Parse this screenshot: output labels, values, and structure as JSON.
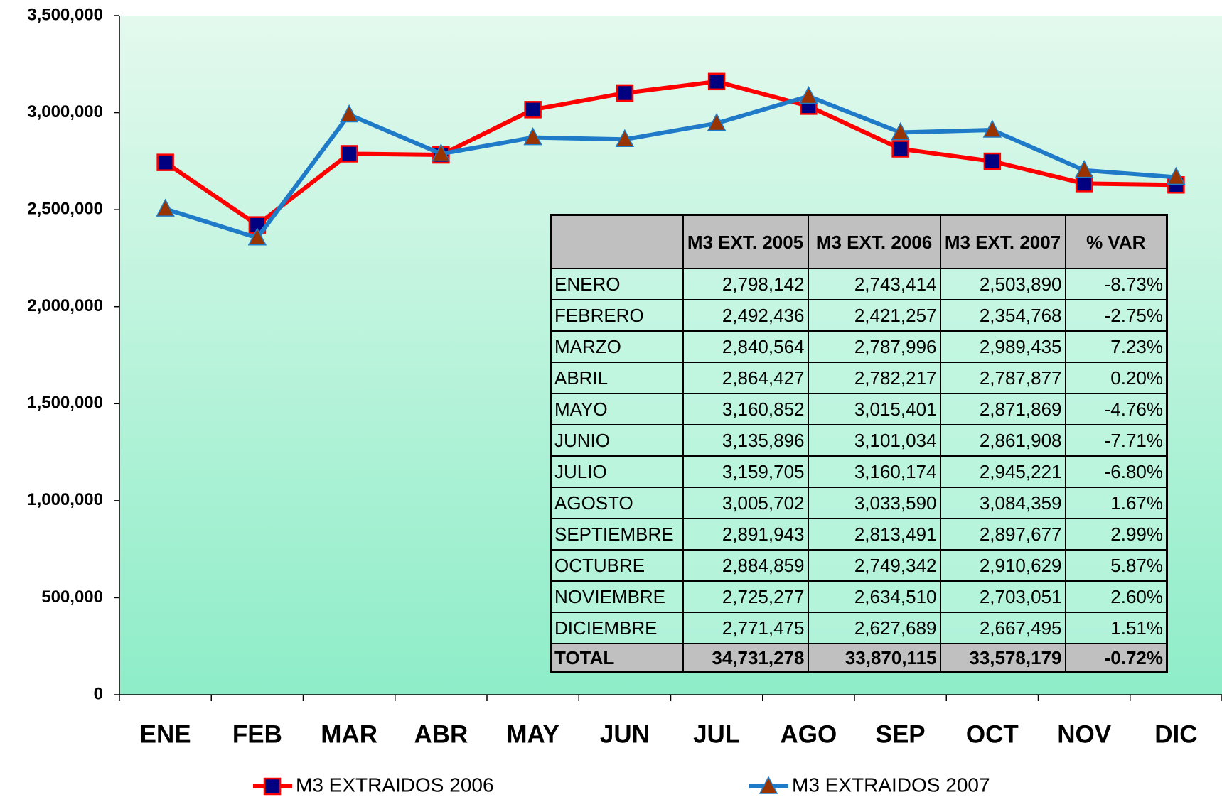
{
  "chart_data": {
    "type": "line",
    "categories": [
      "ENE",
      "FEB",
      "MAR",
      "ABR",
      "MAY",
      "JUN",
      "JUL",
      "AGO",
      "SEP",
      "OCT",
      "NOV",
      "DIC"
    ],
    "series": [
      {
        "name": "M3 EXTRAIDOS 2006",
        "color": "#ff0000",
        "marker_color": "#000080",
        "marker": "square",
        "values": [
          2743414,
          2421257,
          2787996,
          2782217,
          3015401,
          3101034,
          3160174,
          3033590,
          2813491,
          2749342,
          2634510,
          2627689
        ]
      },
      {
        "name": "M3 EXTRAIDOS 2007",
        "color": "#1f7bc8",
        "marker_color": "#993300",
        "marker": "triangle",
        "values": [
          2503890,
          2354768,
          2989435,
          2787877,
          2871869,
          2861908,
          2945221,
          3084359,
          2897677,
          2910629,
          2703051,
          2667495
        ]
      }
    ],
    "ylim": [
      0,
      3500000
    ],
    "yticks": [
      0,
      {
        "value": 500000,
        "label": "500,000"
      },
      {
        "value": 1000000,
        "label": "1,000,000"
      },
      {
        "value": 1500000,
        "label": "1,500,000"
      },
      {
        "value": 2000000,
        "label": "2,000,000"
      },
      {
        "value": 2500000,
        "label": "2,500,000"
      },
      {
        "value": 3000000,
        "label": "3,000,000"
      },
      {
        "value": 3500000,
        "label": "3,500,000"
      }
    ],
    "legend": "bottom"
  },
  "table": {
    "header": [
      "M3 EXT. 2005",
      "M3 EXT. 2006",
      "M3 EXT. 2007",
      "% VAR"
    ],
    "rows": [
      [
        "ENERO",
        "2,798,142",
        "2,743,414",
        "2,503,890",
        "-8.73%"
      ],
      [
        "FEBRERO",
        "2,492,436",
        "2,421,257",
        "2,354,768",
        "-2.75%"
      ],
      [
        "MARZO",
        "2,840,564",
        "2,787,996",
        "2,989,435",
        "7.23%"
      ],
      [
        "ABRIL",
        "2,864,427",
        "2,782,217",
        "2,787,877",
        "0.20%"
      ],
      [
        "MAYO",
        "3,160,852",
        "3,015,401",
        "2,871,869",
        "-4.76%"
      ],
      [
        "JUNIO",
        "3,135,896",
        "3,101,034",
        "2,861,908",
        "-7.71%"
      ],
      [
        "JULIO",
        "3,159,705",
        "3,160,174",
        "2,945,221",
        "-6.80%"
      ],
      [
        "AGOSTO",
        "3,005,702",
        "3,033,590",
        "3,084,359",
        "1.67%"
      ],
      [
        "SEPTIEMBRE",
        "2,891,943",
        "2,813,491",
        "2,897,677",
        "2.99%"
      ],
      [
        "OCTUBRE",
        "2,884,859",
        "2,749,342",
        "2,910,629",
        "5.87%"
      ],
      [
        "NOVIEMBRE",
        "2,725,277",
        "2,634,510",
        "2,703,051",
        "2.60%"
      ],
      [
        "DICIEMBRE",
        "2,771,475",
        "2,627,689",
        "2,667,495",
        "1.51%"
      ]
    ],
    "total": [
      "TOTAL",
      "34,731,278",
      "33,870,115",
      "33,578,179",
      "-0.72%"
    ]
  }
}
